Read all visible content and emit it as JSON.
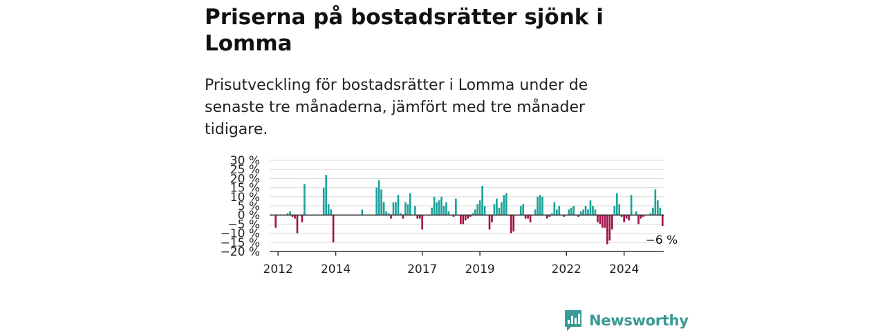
{
  "title": "Priserna på bostadsrätter sjönk i Lomma",
  "subtitle": "Prisutveckling för bostadsrätter i Lomma under de senaste tre månaderna, jämfört med tre månader tidigare.",
  "brand": {
    "name": "Newsworthy",
    "icon": "newsworthy-logo-icon"
  },
  "colors": {
    "positive": "#1aa39a",
    "negative": "#a0124a",
    "grid": "#d9d9d9",
    "axis": "#333333",
    "brand": "#3a9a96"
  },
  "chart_data": {
    "type": "bar",
    "ylabel": "",
    "xlabel": "",
    "ylim": [
      -20,
      30
    ],
    "yticks": [
      30,
      25,
      20,
      15,
      10,
      5,
      0,
      -5,
      -10,
      -15,
      -20
    ],
    "ytick_labels": [
      "30 %",
      "25 %",
      "20 %",
      "15 %",
      "10 %",
      "5 %",
      "0 %",
      "−5 %",
      "−10 %",
      "−15 %",
      "−20 %"
    ],
    "xticks": [
      {
        "label": "2012",
        "month": "2012-01"
      },
      {
        "label": "2014",
        "month": "2014-01"
      },
      {
        "label": "2017",
        "month": "2017-01"
      },
      {
        "label": "2019",
        "month": "2019-01"
      },
      {
        "label": "2022",
        "month": "2022-01"
      },
      {
        "label": "2024",
        "month": "2024-01"
      }
    ],
    "start_month": "2011-10",
    "series": [
      {
        "values": [
          0,
          0,
          -7,
          0,
          0,
          0,
          0,
          1,
          2,
          -1,
          -2,
          -10,
          0,
          -4,
          17,
          0,
          0,
          0,
          0,
          0,
          0,
          0,
          15,
          22,
          6,
          3,
          -15,
          0,
          0,
          0,
          0,
          0,
          0,
          0,
          0,
          0,
          0,
          0,
          3,
          0,
          0,
          0,
          0,
          0,
          15,
          19,
          14,
          7,
          2,
          1,
          -2,
          7,
          7,
          11,
          1,
          -2,
          7,
          6,
          12,
          0,
          5,
          -2,
          -2,
          -8,
          0,
          0,
          0,
          4,
          10,
          7,
          8,
          10,
          5,
          7,
          2,
          0,
          -1,
          9,
          0,
          -5,
          -5,
          -3,
          -2,
          -1,
          1,
          3,
          6,
          8,
          16,
          5,
          0,
          -8,
          -4,
          6,
          9,
          4,
          7,
          11,
          12,
          0,
          -10,
          -9,
          0,
          0,
          5,
          6,
          -2,
          -2,
          -4,
          0,
          3,
          10,
          11,
          10,
          0,
          -2,
          -1,
          1,
          7,
          3,
          5,
          0,
          -1,
          0,
          3,
          4,
          5,
          0,
          -1,
          2,
          3,
          5,
          3,
          8,
          5,
          3,
          -4,
          -5,
          -7,
          -7,
          -16,
          -14,
          -8,
          5,
          12,
          6,
          -1,
          -4,
          -2,
          -3,
          11,
          0,
          2,
          -5,
          -2,
          -1,
          0,
          0,
          1,
          4,
          14,
          8,
          4,
          -6
        ],
        "positive_color": "#1aa39a",
        "negative_color": "#a0124a"
      }
    ],
    "annotation": {
      "text": "−6 %",
      "target": "last"
    },
    "grid": true,
    "legend": "none"
  }
}
